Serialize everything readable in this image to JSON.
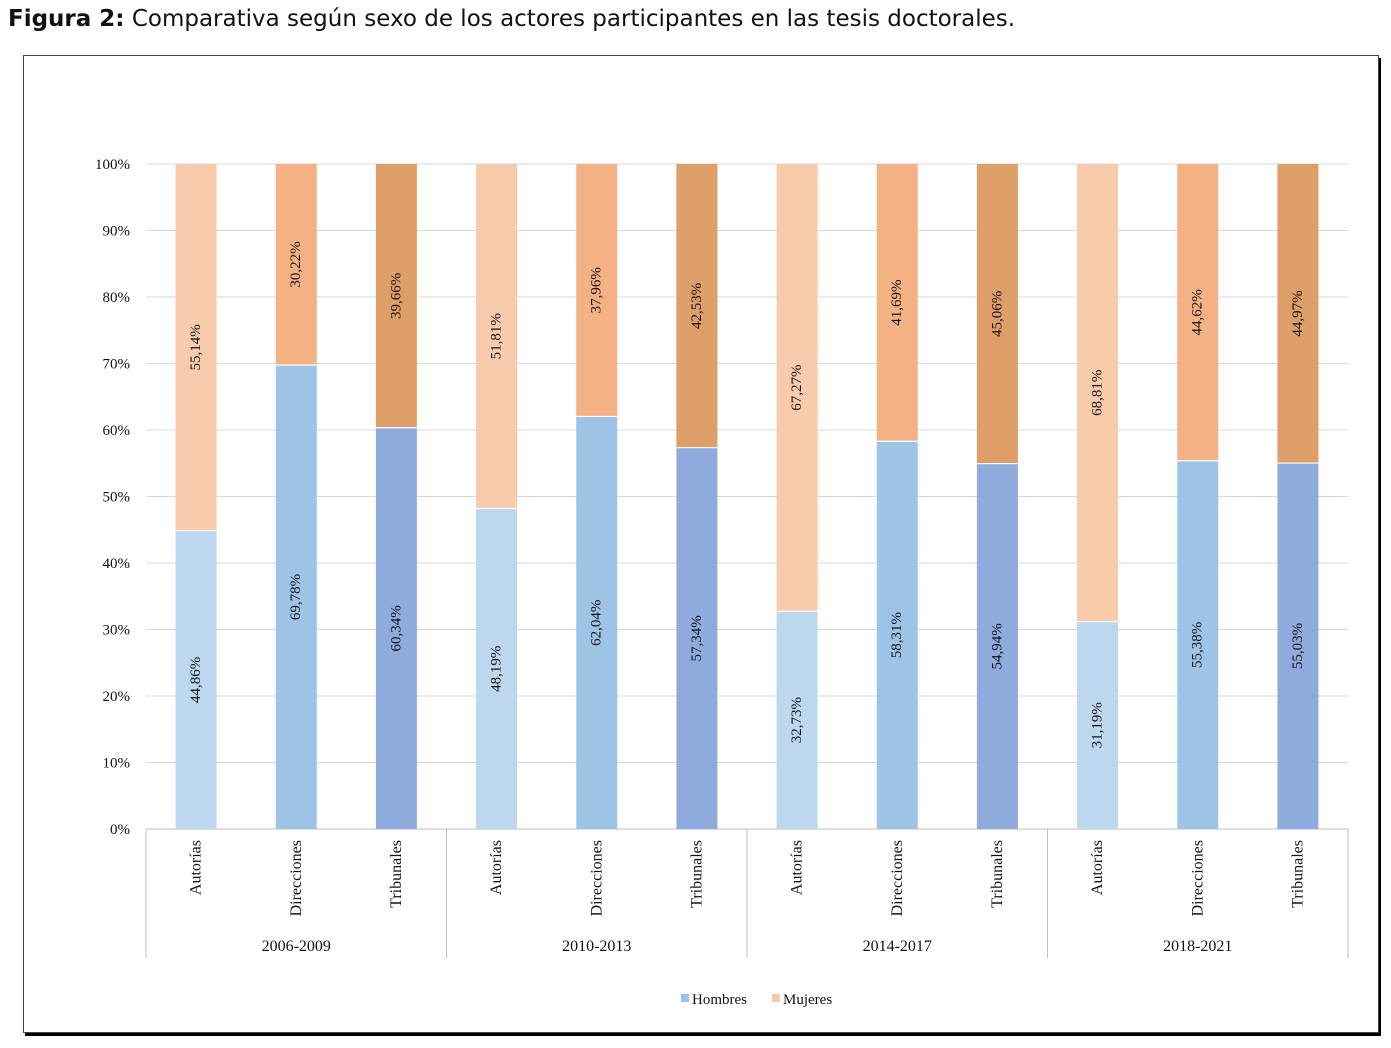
{
  "caption": {
    "lead": "Figura 2:",
    "text": "Comparativa según sexo de los actores participantes en las tesis doctorales."
  },
  "chart_data": {
    "type": "bar",
    "stacked": true,
    "percent_stacked": true,
    "ylim": [
      0,
      100
    ],
    "yticks": [
      "0%",
      "10%",
      "20%",
      "30%",
      "40%",
      "50%",
      "60%",
      "70%",
      "80%",
      "90%",
      "100%"
    ],
    "grid": true,
    "legend_position": "bottom",
    "groups": [
      {
        "label": "2006-2009",
        "bars": [
          {
            "category": "Autorías",
            "hombres": 44.86,
            "mujeres": 55.14,
            "hombres_label": "44,86%",
            "mujeres_label": "55,14%"
          },
          {
            "category": "Direcciones",
            "hombres": 69.78,
            "mujeres": 30.22,
            "hombres_label": "69,78%",
            "mujeres_label": "30,22%"
          },
          {
            "category": "Tribunales",
            "hombres": 60.34,
            "mujeres": 39.66,
            "hombres_label": "60,34%",
            "mujeres_label": "39,66%"
          }
        ]
      },
      {
        "label": "2010-2013",
        "bars": [
          {
            "category": "Autorías",
            "hombres": 48.19,
            "mujeres": 51.81,
            "hombres_label": "48,19%",
            "mujeres_label": "51,81%"
          },
          {
            "category": "Direcciones",
            "hombres": 62.04,
            "mujeres": 37.96,
            "hombres_label": "62,04%",
            "mujeres_label": "37,96%"
          },
          {
            "category": "Tribunales",
            "hombres": 57.34,
            "mujeres": 42.53,
            "hombres_label": "57,34%",
            "mujeres_label": "42,53%"
          }
        ]
      },
      {
        "label": "2014-2017",
        "bars": [
          {
            "category": "Autorías",
            "hombres": 32.73,
            "mujeres": 67.27,
            "hombres_label": "32,73%",
            "mujeres_label": "67,27%"
          },
          {
            "category": "Direcciones",
            "hombres": 58.31,
            "mujeres": 41.69,
            "hombres_label": "58,31%",
            "mujeres_label": "41,69%"
          },
          {
            "category": "Tribunales",
            "hombres": 54.94,
            "mujeres": 45.06,
            "hombres_label": "54,94%",
            "mujeres_label": "45,06%"
          }
        ]
      },
      {
        "label": "2018-2021",
        "bars": [
          {
            "category": "Autorías",
            "hombres": 31.19,
            "mujeres": 68.81,
            "hombres_label": "31,19%",
            "mujeres_label": "68,81%"
          },
          {
            "category": "Direcciones",
            "hombres": 55.38,
            "mujeres": 44.62,
            "hombres_label": "55,38%",
            "mujeres_label": "44,62%"
          },
          {
            "category": "Tribunales",
            "hombres": 55.03,
            "mujeres": 44.97,
            "hombres_label": "55,03%",
            "mujeres_label": "44,97%"
          }
        ]
      }
    ],
    "legend": [
      {
        "name": "Hombres",
        "color": "#9fc3e6"
      },
      {
        "name": "Mujeres",
        "color": "#f7c9a9"
      }
    ],
    "colors": {
      "Autorías": {
        "hombres": "#bdd7ee",
        "mujeres": "#f8cbad"
      },
      "Direcciones": {
        "hombres": "#9dc3e6",
        "mujeres": "#f4b183"
      },
      "Tribunales": {
        "hombres": "#8faadc",
        "mujeres": "#dd9e68"
      }
    }
  }
}
